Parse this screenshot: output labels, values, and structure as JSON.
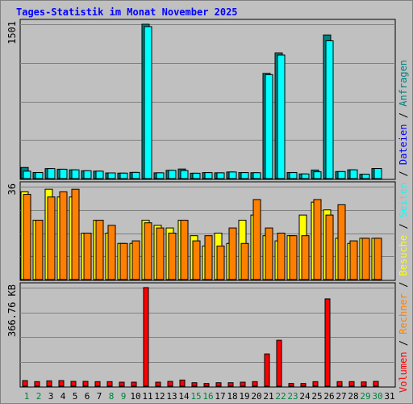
{
  "colors": {
    "background": "#C0C0C0",
    "plot_background": "#C0C0C0",
    "title": "#0000FF",
    "bar_outline": "#000000",
    "hits_front": "#00FFFF",
    "hits_back": "#008080",
    "visits_front": "#FFFF00",
    "visits_back": "#FF8000",
    "volume": "#FF0000",
    "weekend_label": "#008040",
    "weekday_label": "#000000"
  },
  "chart_data": {
    "type": "bar",
    "title": "Tages-Statistik im Monat November 2025",
    "categories": [
      "1",
      "2",
      "3",
      "4",
      "5",
      "6",
      "7",
      "8",
      "9",
      "10",
      "11",
      "12",
      "13",
      "14",
      "15",
      "16",
      "17",
      "18",
      "19",
      "20",
      "21",
      "22",
      "23",
      "24",
      "25",
      "26",
      "27",
      "28",
      "29",
      "30",
      "31"
    ],
    "weekend_days": [
      "1",
      "2",
      "8",
      "9",
      "15",
      "16",
      "22",
      "23",
      "29",
      "30"
    ],
    "right_legend": [
      {
        "text": "Volumen",
        "color": "#FF0000"
      },
      {
        "text": " / ",
        "color": "#000000"
      },
      {
        "text": "Rechner",
        "color": "#FF8000"
      },
      {
        "text": " / ",
        "color": "#000000"
      },
      {
        "text": "Besuche",
        "color": "#FFFF00"
      },
      {
        "text": " / ",
        "color": "#000000"
      },
      {
        "text": "Seiten",
        "color": "#00FFFF"
      },
      {
        "text": " / ",
        "color": "#000000"
      },
      {
        "text": "Dateien",
        "color": "#0000FF"
      },
      {
        "text": " / ",
        "color": "#000000"
      },
      {
        "text": "Anfragen",
        "color": "#008080"
      }
    ],
    "panels": [
      {
        "id": "hits",
        "axis_label": "1501",
        "ylim": [
          0,
          1501
        ],
        "series": [
          {
            "role": "back",
            "color": "#008080",
            "values": [
              108,
              59,
              97,
              91,
              85,
              76,
              72,
              55,
              53,
              60,
              1501,
              56,
              80,
              93,
              52,
              58,
              56,
              64,
              58,
              57,
              1023,
              1222,
              59,
              45,
              83,
              1397,
              68,
              85,
              42,
              98,
              0
            ]
          },
          {
            "role": "front",
            "color": "#00FFFF",
            "values": [
              72,
              59,
              97,
              91,
              85,
              76,
              72,
              55,
              53,
              60,
              1478,
              56,
              80,
              78,
              52,
              58,
              56,
              64,
              58,
              57,
              1011,
              1202,
              59,
              45,
              66,
              1340,
              68,
              85,
              42,
              98,
              0
            ]
          }
        ]
      },
      {
        "id": "visits",
        "axis_label": "36",
        "ylim": [
          0,
          36
        ],
        "series": [
          {
            "role": "back",
            "color": "#FFFF00",
            "values": [
              34,
              23,
              35,
              32,
              32,
              18,
              23,
              18,
              14,
              14,
              23,
              21,
              20,
              23,
              17,
              13,
              18,
              14,
              23,
              25,
              17,
              15,
              17,
              25,
              30,
              27,
              16,
              14,
              16,
              16,
              0
            ]
          },
          {
            "role": "front",
            "color": "#FF8000",
            "values": [
              33,
              23,
              32,
              34,
              35,
              18,
              23,
              21,
              14,
              15,
              22,
              20,
              18,
              23,
              15,
              17,
              13,
              20,
              14,
              31,
              20,
              18,
              17,
              17,
              31,
              25,
              29,
              15,
              16,
              16,
              0
            ]
          }
        ]
      },
      {
        "id": "volume",
        "axis_label": "366.76 KB",
        "ylim": [
          0,
          366.76
        ],
        "series": [
          {
            "role": "single",
            "color": "#FF0000",
            "values": [
              21,
              17,
              20,
              21,
              18,
              18,
              17,
              17,
              15,
              15,
              367,
              15,
              18,
              23,
              13,
              10,
              13,
              13,
              15,
              17,
              120,
              171,
              10,
              10,
              17,
              325,
              17,
              17,
              16,
              18,
              0
            ]
          }
        ]
      }
    ]
  }
}
